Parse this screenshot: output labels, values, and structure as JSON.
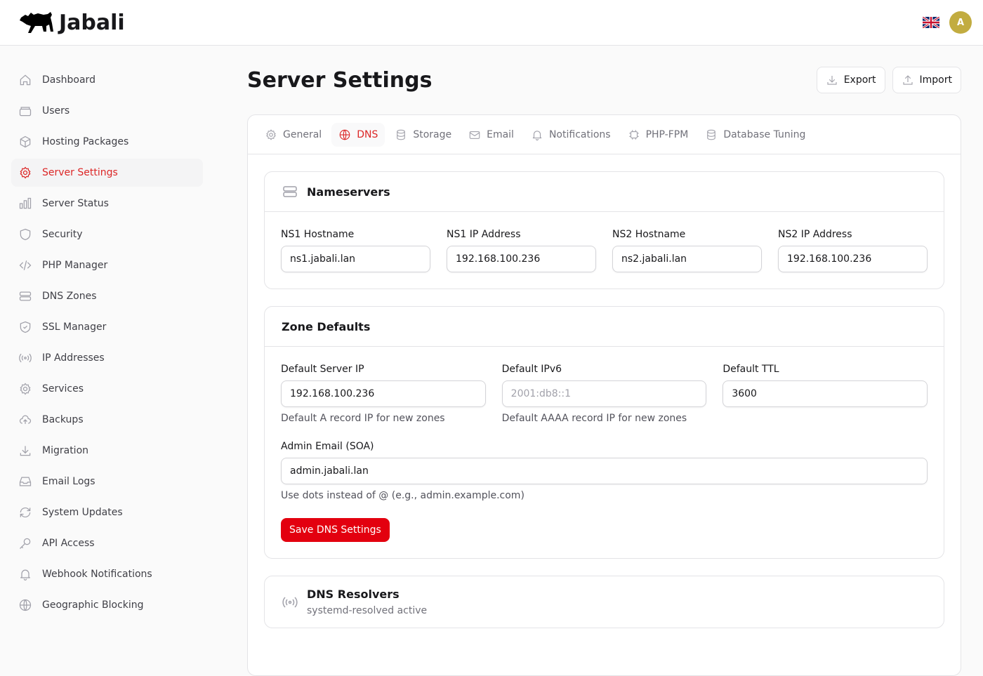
{
  "app": {
    "name": "Jabali",
    "avatar_initial": "A",
    "language_flag": "uk-flag-icon",
    "accent": "#dc2626",
    "primary_button": "#e3000f"
  },
  "sidebar": {
    "items": [
      {
        "label": "Dashboard",
        "icon": "home-icon"
      },
      {
        "label": "Users",
        "icon": "users-icon"
      },
      {
        "label": "Hosting Packages",
        "icon": "cube-icon"
      },
      {
        "label": "Server Settings",
        "icon": "gear-icon",
        "active": true
      },
      {
        "label": "Server Status",
        "icon": "chart-bar-icon"
      },
      {
        "label": "Security",
        "icon": "shield-icon"
      },
      {
        "label": "PHP Manager",
        "icon": "code-icon"
      },
      {
        "label": "DNS Zones",
        "icon": "server-icon"
      },
      {
        "label": "SSL Manager",
        "icon": "shield-check-icon"
      },
      {
        "label": "IP Addresses",
        "icon": "signal-icon"
      },
      {
        "label": "Services",
        "icon": "cog-icon"
      },
      {
        "label": "Backups",
        "icon": "cloud-upload-icon"
      },
      {
        "label": "Migration",
        "icon": "download-icon"
      },
      {
        "label": "Email Logs",
        "icon": "inbox-icon"
      },
      {
        "label": "System Updates",
        "icon": "refresh-icon"
      },
      {
        "label": "API Access",
        "icon": "key-icon"
      },
      {
        "label": "Webhook Notifications",
        "icon": "bell-icon"
      },
      {
        "label": "Geographic Blocking",
        "icon": "globe-icon"
      }
    ]
  },
  "page": {
    "title": "Server Settings",
    "export_label": "Export",
    "import_label": "Import"
  },
  "tabs": [
    {
      "label": "General",
      "icon": "gear-icon"
    },
    {
      "label": "DNS",
      "icon": "globe-icon",
      "active": true
    },
    {
      "label": "Storage",
      "icon": "database-icon"
    },
    {
      "label": "Email",
      "icon": "envelope-icon"
    },
    {
      "label": "Notifications",
      "icon": "bell-icon"
    },
    {
      "label": "PHP-FPM",
      "icon": "cpu-icon"
    },
    {
      "label": "Database Tuning",
      "icon": "database-icon"
    }
  ],
  "nameservers": {
    "title": "Nameservers",
    "fields": [
      {
        "label": "NS1 Hostname",
        "value": "ns1.jabali.lan"
      },
      {
        "label": "NS1 IP Address",
        "value": "192.168.100.236"
      },
      {
        "label": "NS2 Hostname",
        "value": "ns2.jabali.lan"
      },
      {
        "label": "NS2 IP Address",
        "value": "192.168.100.236"
      }
    ]
  },
  "zone_defaults": {
    "title": "Zone Defaults",
    "server_ip": {
      "label": "Default Server IP",
      "value": "192.168.100.236",
      "help": "Default A record IP for new zones"
    },
    "ipv6": {
      "label": "Default IPv6",
      "placeholder": "2001:db8::1",
      "help": "Default AAAA record IP for new zones"
    },
    "ttl": {
      "label": "Default TTL",
      "value": "3600"
    },
    "admin_email": {
      "label": "Admin Email (SOA)",
      "value": "admin.jabali.lan",
      "help": "Use dots instead of @ (e.g., admin.example.com)"
    },
    "save_label": "Save DNS Settings"
  },
  "resolvers": {
    "title": "DNS Resolvers",
    "subtitle": "systemd-resolved active"
  }
}
